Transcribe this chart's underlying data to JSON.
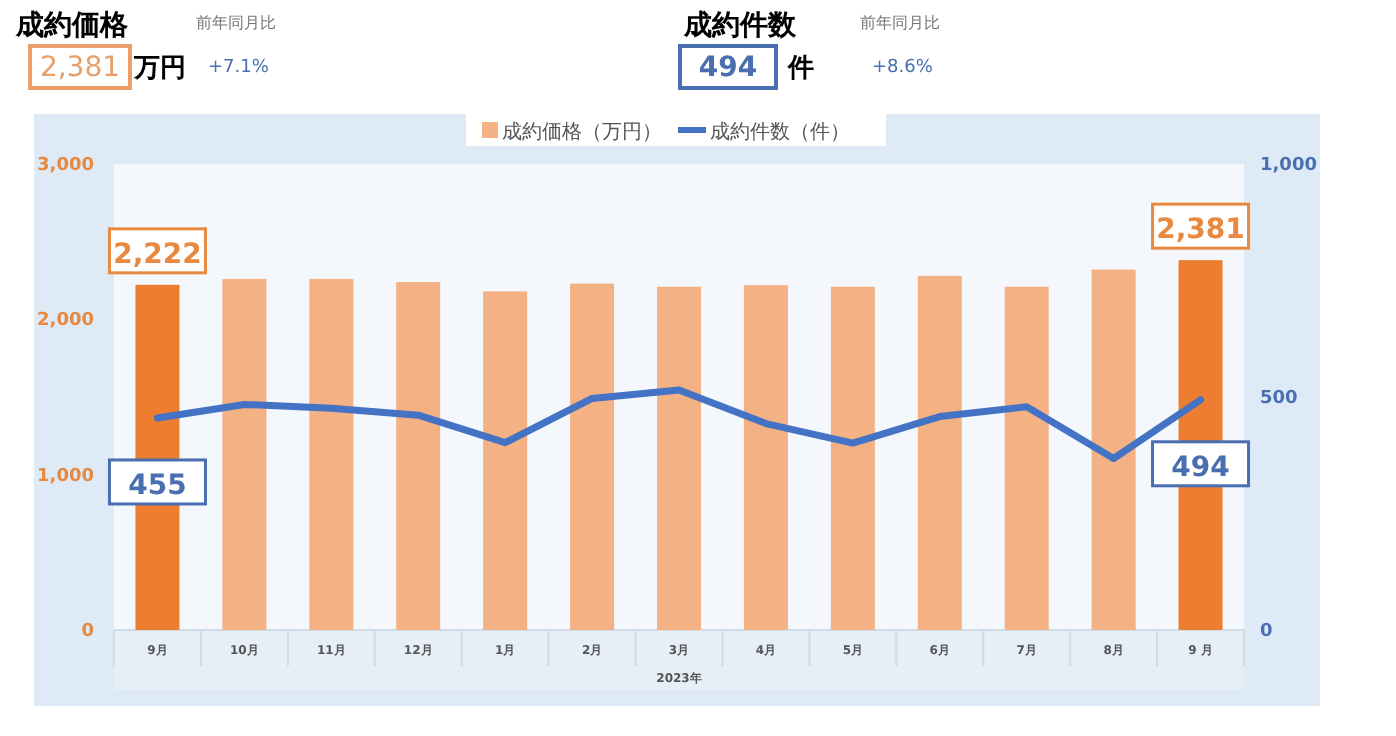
{
  "chart_data": {
    "type": "bar",
    "annotations": [
      "成約価格",
      "2,381",
      "万円",
      "前年同月比",
      "+7.1%",
      "成約件数",
      "494",
      "件",
      "前年同月比",
      "+8.6%"
    ],
    "xlabel": "2023年",
    "categories": [
      "9月",
      "10月",
      "11月",
      "12月",
      "1月",
      "2月",
      "3月",
      "4月",
      "5月",
      "6月",
      "7月",
      "8月",
      "9 月"
    ],
    "series": [
      {
        "name": "成約価格（万円）",
        "colors": [
          "#ed7d31",
          "#f4b183",
          "#f4b183",
          "#f4b183",
          "#f4b183",
          "#f4b183",
          "#f4b183",
          "#f4b183",
          "#f4b183",
          "#f4b183",
          "#f4b183",
          "#f4b183",
          "#ed7d31"
        ],
        "values": [
          2222,
          2260,
          2260,
          2240,
          2180,
          2230,
          2210,
          2220,
          2210,
          2280,
          2210,
          2320,
          2381
        ],
        "value_labels": [
          "2,222",
          null,
          null,
          null,
          null,
          null,
          null,
          null,
          null,
          null,
          null,
          null,
          "2,381"
        ]
      },
      {
        "name": "成約件数（件）",
        "type": "line",
        "axis": "y2",
        "color": "#4472c4",
        "values": [
          455,
          484,
          476,
          461,
          402,
          497,
          515,
          443,
          401,
          458,
          479,
          368,
          494
        ],
        "value_labels": [
          "455",
          null,
          null,
          null,
          null,
          null,
          null,
          null,
          null,
          null,
          null,
          null,
          "494"
        ]
      }
    ],
    "ylim": [
      0,
      3000
    ],
    "yticks": [
      0,
      {
        "value": 1000,
        "label": "1,000"
      },
      {
        "value": 2000,
        "label": "2,000"
      },
      {
        "value": 3000,
        "label": "3,000"
      }
    ],
    "y2lim": [
      0,
      1000
    ],
    "y2ticks": [
      0,
      500,
      {
        "value": 1000,
        "label": "1,000"
      }
    ],
    "legend": "top"
  }
}
